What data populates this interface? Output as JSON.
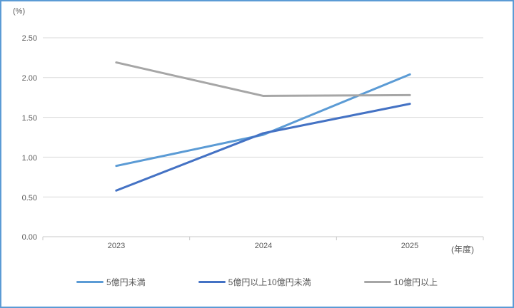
{
  "frame": {
    "border_color": "#5B9BD5",
    "background": "#FFFFFF"
  },
  "chart_data": {
    "type": "line",
    "title": "",
    "y_unit_label": "(%)",
    "x_unit_label": "(年度)",
    "categories": [
      "2023",
      "2024",
      "2025"
    ],
    "series": [
      {
        "name": "5億円未満",
        "color": "#5B9BD5",
        "values": [
          0.89,
          1.28,
          2.04
        ]
      },
      {
        "name": "5億円以上10億円未満",
        "color": "#4472C4",
        "values": [
          0.58,
          1.3,
          1.67
        ]
      },
      {
        "name": "10億円以上",
        "color": "#A6A6A6",
        "values": [
          2.19,
          1.77,
          1.78
        ]
      }
    ],
    "ylim": [
      0,
      2.5
    ],
    "yticks": [
      "0.00",
      "0.50",
      "1.00",
      "1.50",
      "2.00",
      "2.50"
    ],
    "grid": true,
    "legend_position": "bottom",
    "gridline_color": "#D9D9D9",
    "axis_color": "#C9C9C9"
  }
}
